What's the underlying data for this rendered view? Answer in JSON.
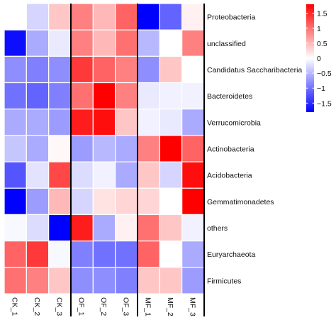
{
  "chart_data": {
    "type": "heatmap",
    "title": "",
    "rows": [
      "Proteobacteria",
      "unclassified",
      "Candidatus Saccharibacteria",
      "Bacteroidetes",
      "Verrucomicrobia",
      "Actinobacteria",
      "Acidobacteria",
      "Gemmatimonadetes",
      "others",
      "Euryarchaeota",
      "Firmicutes"
    ],
    "columns": [
      "CK_1",
      "CK_2",
      "CK_3",
      "OF_1",
      "OF_2",
      "OF_3",
      "MF_1",
      "MF_2",
      "MF_3"
    ],
    "groups": [
      [
        "CK_1",
        "CK_2",
        "CK_3"
      ],
      [
        "OF_1",
        "OF_2",
        "OF_3"
      ],
      [
        "MF_1",
        "MF_2",
        "MF_3"
      ]
    ],
    "values": [
      [
        0.0,
        -0.3,
        0.4,
        0.9,
        0.5,
        1.1,
        -1.8,
        -1.1,
        0.1
      ],
      [
        -1.7,
        -0.6,
        -0.15,
        0.9,
        0.5,
        1.0,
        -0.5,
        0.0,
        0.9
      ],
      [
        -0.8,
        -0.9,
        -0.8,
        1.4,
        1.1,
        0.9,
        -0.8,
        0.4,
        0.0
      ],
      [
        -1.0,
        -1.1,
        -0.9,
        1.0,
        1.8,
        0.9,
        -0.15,
        -0.1,
        -0.1
      ],
      [
        -0.6,
        -0.6,
        -0.7,
        1.6,
        1.7,
        0.4,
        -0.1,
        -0.15,
        -0.6
      ],
      [
        -0.4,
        -0.6,
        0.05,
        -0.7,
        -0.5,
        -0.6,
        0.9,
        1.8,
        1.1
      ],
      [
        -1.2,
        -0.2,
        1.3,
        -0.25,
        -0.1,
        -0.6,
        0.4,
        -0.3,
        1.7
      ],
      [
        -1.8,
        -0.7,
        0.5,
        -0.3,
        0.2,
        0.3,
        0.3,
        0.0,
        1.8
      ],
      [
        -0.05,
        -0.25,
        -1.8,
        1.6,
        -0.6,
        0.1,
        1.0,
        0.4,
        -0.1
      ],
      [
        1.1,
        1.4,
        -0.05,
        -0.9,
        -1.0,
        -1.0,
        1.1,
        0.0,
        -0.6
      ],
      [
        1.0,
        0.9,
        0.4,
        -0.8,
        -0.8,
        -0.9,
        0.4,
        0.4,
        -0.7
      ]
    ],
    "legend": {
      "range": [
        -1.8,
        1.8
      ],
      "ticks": [
        1.5,
        1,
        0.5,
        0,
        -0.5,
        -1,
        -1.5
      ],
      "tick_labels": [
        "1.5",
        "1",
        "0.5",
        "0",
        "−0.5",
        "−1",
        "−1.5"
      ],
      "colors": {
        "low": "#0000ff",
        "mid": "#ffffff",
        "high": "#ff0000"
      },
      "placement": "right"
    },
    "xlabel": "",
    "ylabel": ""
  }
}
